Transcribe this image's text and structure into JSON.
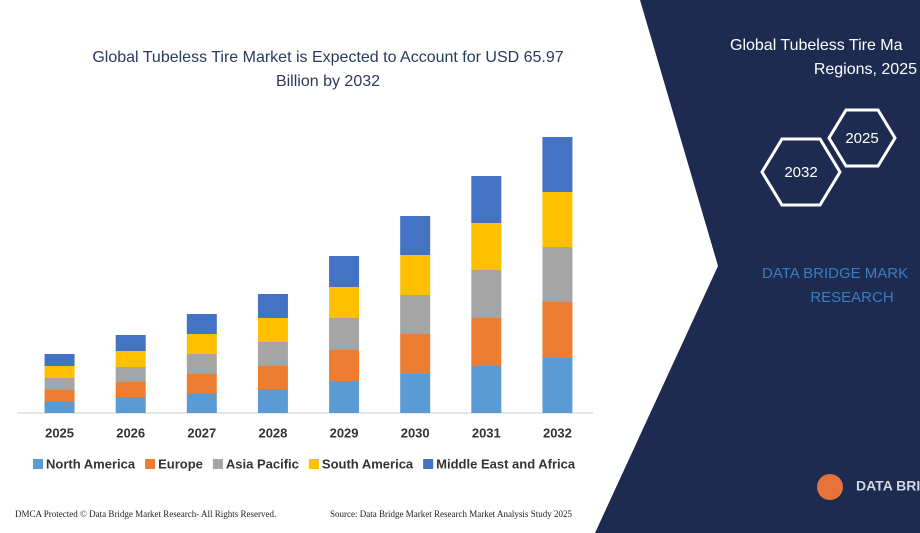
{
  "chart_data": {
    "type": "stacked-bar",
    "title": "Global Tubeless Tire Market is Expected to Account for USD 65.97",
    "subtitle": "Billion by 2032",
    "categories": [
      "2025",
      "2026",
      "2027",
      "2028",
      "2029",
      "2030",
      "2031",
      "2032"
    ],
    "series": [
      {
        "name": "North America",
        "color": "#5b9bd5",
        "values": [
          11,
          16,
          19,
          24,
          32,
          39,
          47,
          55
        ]
      },
      {
        "name": "Europe",
        "color": "#ed7d31",
        "values": [
          12,
          15,
          20,
          23,
          31,
          40,
          48,
          56
        ]
      },
      {
        "name": "Asia Pacific",
        "color": "#a5a5a5",
        "values": [
          12,
          15,
          20,
          24,
          32,
          39,
          48,
          55
        ]
      },
      {
        "name": "South America",
        "color": "#ffc000",
        "values": [
          12,
          16,
          20,
          24,
          31,
          40,
          47,
          55
        ]
      },
      {
        "name": "Middle East and Africa",
        "color": "#4472c4",
        "values": [
          12,
          16,
          20,
          24,
          31,
          39,
          47,
          55
        ]
      }
    ]
  },
  "panel": {
    "title_line1": "Global Tubeless Tire Ma",
    "title_line2": "Regions, 2025",
    "hex_a": "2025",
    "hex_b": "2032",
    "brand_line1": "DATA BRIDGE MARK",
    "brand_line2": "RESEARCH",
    "logo": "DATA BRI"
  },
  "footer": {
    "left": "DMCA Protected © Data Bridge Market Research-  All Rights Reserved.",
    "right": "Source: Data Bridge Market Research Market Analysis Study 2025"
  }
}
